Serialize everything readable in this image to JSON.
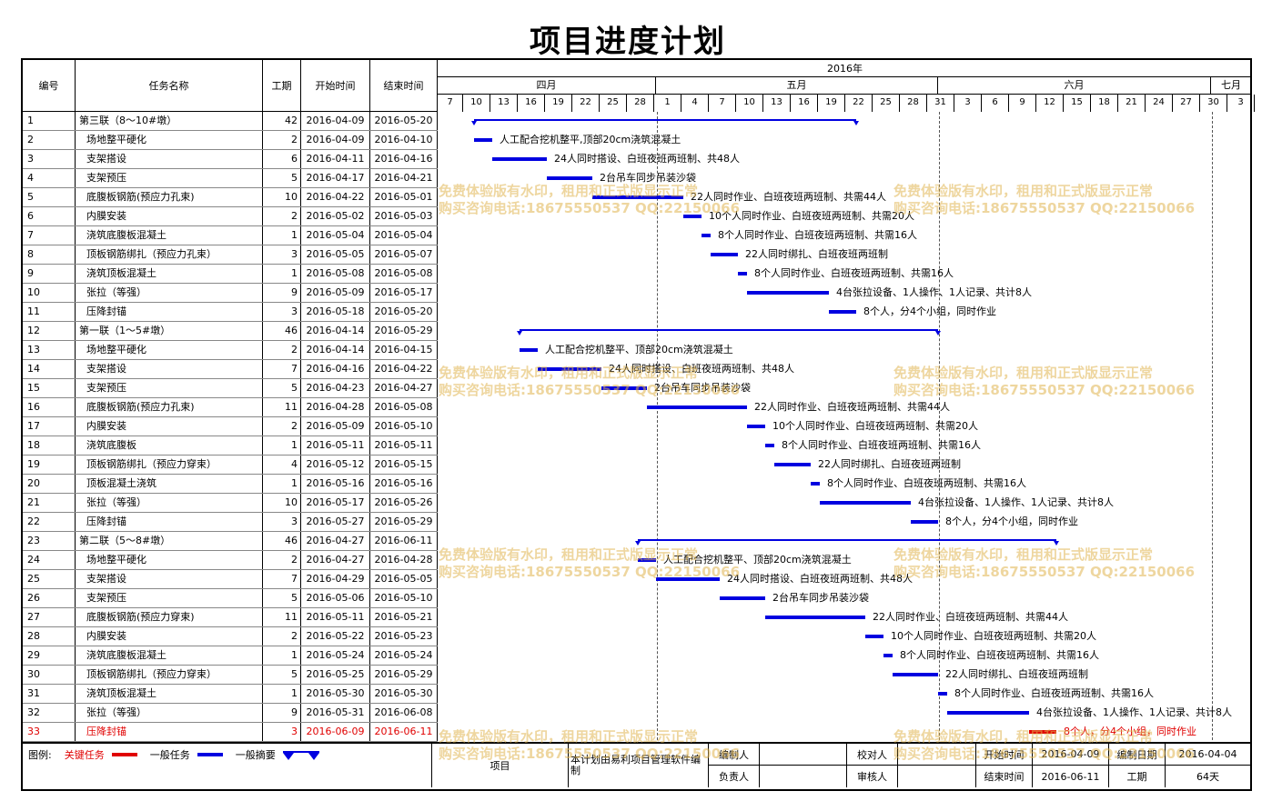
{
  "title": "项目进度计划",
  "headers": {
    "id": "编号",
    "name": "任务名称",
    "duration": "工期",
    "start": "开始时间",
    "end": "结束时间"
  },
  "timeline": {
    "year": "2016年",
    "months": [
      "四月",
      "五月",
      "六月",
      "七月"
    ],
    "days": [
      "7",
      "10",
      "13",
      "16",
      "19",
      "22",
      "25",
      "28",
      "1",
      "4",
      "7",
      "10",
      "13",
      "16",
      "19",
      "22",
      "25",
      "28",
      "31",
      "3",
      "6",
      "9",
      "12",
      "15",
      "18",
      "21",
      "24",
      "27",
      "30",
      "3"
    ]
  },
  "tasks": [
    {
      "id": "1",
      "name": "第三联（8～10#墩）",
      "duration": "42",
      "start": "2016-04-09",
      "end": "2016-05-20",
      "type": "summary",
      "s": 2,
      "e": 44,
      "note": ""
    },
    {
      "id": "2",
      "name": "场地整平硬化",
      "duration": "2",
      "start": "2016-04-09",
      "end": "2016-04-10",
      "type": "task",
      "s": 2,
      "e": 4,
      "note": "人工配合挖机整平,顶部20cm浇筑混凝土"
    },
    {
      "id": "3",
      "name": "支架搭设",
      "duration": "6",
      "start": "2016-04-11",
      "end": "2016-04-16",
      "type": "task",
      "s": 4,
      "e": 10,
      "note": "24人同时搭设、白班夜班两班制、共48人"
    },
    {
      "id": "4",
      "name": "支架预压",
      "duration": "5",
      "start": "2016-04-17",
      "end": "2016-04-21",
      "type": "task",
      "s": 10,
      "e": 15,
      "note": "2台吊车同步吊装沙袋"
    },
    {
      "id": "5",
      "name": "底腹板钢筋(预应力孔束)",
      "duration": "10",
      "start": "2016-04-22",
      "end": "2016-05-01",
      "type": "task",
      "s": 15,
      "e": 25,
      "note": "22人同时作业、白班夜班两班制、共需44人"
    },
    {
      "id": "6",
      "name": "内膜安装",
      "duration": "2",
      "start": "2016-05-02",
      "end": "2016-05-03",
      "type": "task",
      "s": 25,
      "e": 27,
      "note": "10个人同时作业、白班夜班两班制、共需20人"
    },
    {
      "id": "7",
      "name": "浇筑底腹板混凝土",
      "duration": "1",
      "start": "2016-05-04",
      "end": "2016-05-04",
      "type": "task",
      "s": 27,
      "e": 28,
      "note": "8个人同时作业、白班夜班两班制、共需16人"
    },
    {
      "id": "8",
      "name": "顶板钢筋绑扎（预应力孔束）",
      "duration": "3",
      "start": "2016-05-05",
      "end": "2016-05-07",
      "type": "task",
      "s": 28,
      "e": 31,
      "note": "22人同时绑扎、白班夜班两班制"
    },
    {
      "id": "9",
      "name": "浇筑顶板混凝土",
      "duration": "1",
      "start": "2016-05-08",
      "end": "2016-05-08",
      "type": "task",
      "s": 31,
      "e": 32,
      "note": "8个人同时作业、白班夜班两班制、共需16人"
    },
    {
      "id": "10",
      "name": "张拉（等强）",
      "duration": "9",
      "start": "2016-05-09",
      "end": "2016-05-17",
      "type": "task",
      "s": 32,
      "e": 41,
      "note": "4台张拉设备、1人操作、1人记录、共计8人"
    },
    {
      "id": "11",
      "name": "压降封锚",
      "duration": "3",
      "start": "2016-05-18",
      "end": "2016-05-20",
      "type": "task",
      "s": 41,
      "e": 44,
      "note": "8个人，分4个小组，同时作业"
    },
    {
      "id": "12",
      "name": "第一联（1～5#墩）",
      "duration": "46",
      "start": "2016-04-14",
      "end": "2016-05-29",
      "type": "summary",
      "s": 7,
      "e": 53,
      "note": ""
    },
    {
      "id": "13",
      "name": "场地整平硬化",
      "duration": "2",
      "start": "2016-04-14",
      "end": "2016-04-15",
      "type": "task",
      "s": 7,
      "e": 9,
      "note": "人工配合挖机整平、顶部20cm浇筑混凝土"
    },
    {
      "id": "14",
      "name": "支架搭设",
      "duration": "7",
      "start": "2016-04-16",
      "end": "2016-04-22",
      "type": "task",
      "s": 9,
      "e": 16,
      "note": "24人同时搭设、白班夜班两班制、共48人"
    },
    {
      "id": "15",
      "name": "支架预压",
      "duration": "5",
      "start": "2016-04-23",
      "end": "2016-04-27",
      "type": "task",
      "s": 16,
      "e": 21,
      "note": "2台吊车同步吊装沙袋"
    },
    {
      "id": "16",
      "name": "底腹板钢筋(预应力孔束)",
      "duration": "11",
      "start": "2016-04-28",
      "end": "2016-05-08",
      "type": "task",
      "s": 21,
      "e": 32,
      "note": "22人同时作业、白班夜班两班制、共需44人"
    },
    {
      "id": "17",
      "name": "内膜安装",
      "duration": "2",
      "start": "2016-05-09",
      "end": "2016-05-10",
      "type": "task",
      "s": 32,
      "e": 34,
      "note": "10个人同时作业、白班夜班两班制、共需20人"
    },
    {
      "id": "18",
      "name": "浇筑底腹板",
      "duration": "1",
      "start": "2016-05-11",
      "end": "2016-05-11",
      "type": "task",
      "s": 34,
      "e": 35,
      "note": "8个人同时作业、白班夜班两班制、共需16人"
    },
    {
      "id": "19",
      "name": "顶板钢筋绑扎（预应力穿束）",
      "duration": "4",
      "start": "2016-05-12",
      "end": "2016-05-15",
      "type": "task",
      "s": 35,
      "e": 39,
      "note": "22人同时绑扎、白班夜班两班制"
    },
    {
      "id": "20",
      "name": "顶板混凝土浇筑",
      "duration": "1",
      "start": "2016-05-16",
      "end": "2016-05-16",
      "type": "task",
      "s": 39,
      "e": 40,
      "note": "8个人同时作业、白班夜班两班制、共需16人"
    },
    {
      "id": "21",
      "name": "张拉（等强）",
      "duration": "10",
      "start": "2016-05-17",
      "end": "2016-05-26",
      "type": "task",
      "s": 40,
      "e": 50,
      "note": "4台张拉设备、1人操作、1人记录、共计8人"
    },
    {
      "id": "22",
      "name": "压降封锚",
      "duration": "3",
      "start": "2016-05-27",
      "end": "2016-05-29",
      "type": "task",
      "s": 50,
      "e": 53,
      "note": "8个人，分4个小组，同时作业"
    },
    {
      "id": "23",
      "name": "第二联（5～8#墩）",
      "duration": "46",
      "start": "2016-04-27",
      "end": "2016-06-11",
      "type": "summary",
      "s": 20,
      "e": 66,
      "note": ""
    },
    {
      "id": "24",
      "name": "场地整平硬化",
      "duration": "2",
      "start": "2016-04-27",
      "end": "2016-04-28",
      "type": "task",
      "s": 20,
      "e": 22,
      "note": "人工配合挖机整平、顶部20cm浇筑混凝土"
    },
    {
      "id": "25",
      "name": "支架搭设",
      "duration": "7",
      "start": "2016-04-29",
      "end": "2016-05-05",
      "type": "task",
      "s": 22,
      "e": 29,
      "note": "24人同时搭设、白班夜班两班制、共48人"
    },
    {
      "id": "26",
      "name": "支架预压",
      "duration": "5",
      "start": "2016-05-06",
      "end": "2016-05-10",
      "type": "task",
      "s": 29,
      "e": 34,
      "note": "2台吊车同步吊装沙袋"
    },
    {
      "id": "27",
      "name": "底腹板钢筋(预应力穿束)",
      "duration": "11",
      "start": "2016-05-11",
      "end": "2016-05-21",
      "type": "task",
      "s": 34,
      "e": 45,
      "note": "22人同时作业、白班夜班两班制、共需44人"
    },
    {
      "id": "28",
      "name": "内膜安装",
      "duration": "2",
      "start": "2016-05-22",
      "end": "2016-05-23",
      "type": "task",
      "s": 45,
      "e": 47,
      "note": "10个人同时作业、白班夜班两班制、共需20人"
    },
    {
      "id": "29",
      "name": "浇筑底腹板混凝土",
      "duration": "1",
      "start": "2016-05-24",
      "end": "2016-05-24",
      "type": "task",
      "s": 47,
      "e": 48,
      "note": "8个人同时作业、白班夜班两班制、共需16人"
    },
    {
      "id": "30",
      "name": "顶板钢筋绑扎（预应力穿束）",
      "duration": "5",
      "start": "2016-05-25",
      "end": "2016-05-29",
      "type": "task",
      "s": 48,
      "e": 53,
      "note": "22人同时绑扎、白班夜班两班制"
    },
    {
      "id": "31",
      "name": "浇筑顶板混凝土",
      "duration": "1",
      "start": "2016-05-30",
      "end": "2016-05-30",
      "type": "task",
      "s": 53,
      "e": 54,
      "note": "8个人同时作业、白班夜班两班制、共需16人"
    },
    {
      "id": "32",
      "name": "张拉（等强）",
      "duration": "9",
      "start": "2016-05-31",
      "end": "2016-06-08",
      "type": "task",
      "s": 54,
      "e": 63,
      "note": "4台张拉设备、1人操作、1人记录、共计8人"
    },
    {
      "id": "33",
      "name": "压降封锚",
      "duration": "3",
      "start": "2016-06-09",
      "end": "2016-06-11",
      "type": "critical",
      "s": 63,
      "e": 66,
      "note": "8个人，分4个小组，同时作业"
    }
  ],
  "watermark": {
    "line1": "免费体验版有水印，租用和正式版显示正常",
    "line2": "购买咨询电话:18675550537 QQ:22150066"
  },
  "legend": {
    "label": "图例:",
    "critical": "关键任务",
    "normal": "一般任务",
    "summary": "一般摘要"
  },
  "footer": {
    "project_label": "项目",
    "software_note": "本计划由易利项目管理软件编制",
    "editor_label": "编制人",
    "editor_value": "",
    "checker_label": "校对人",
    "checker_value": "",
    "owner_label": "负责人",
    "owner_value": "",
    "reviewer_label": "审核人",
    "reviewer_value": "",
    "start_label": "开始时间",
    "start_value": "2016-04-09",
    "made_label": "编制日期",
    "made_value": "2016-04-04",
    "end_label": "结束时间",
    "end_value": "2016-06-11",
    "period_label": "工期",
    "period_value": "64天"
  },
  "colors": {
    "critical": "#e00000",
    "task": "#0000e0",
    "summary": "#0000e0"
  }
}
